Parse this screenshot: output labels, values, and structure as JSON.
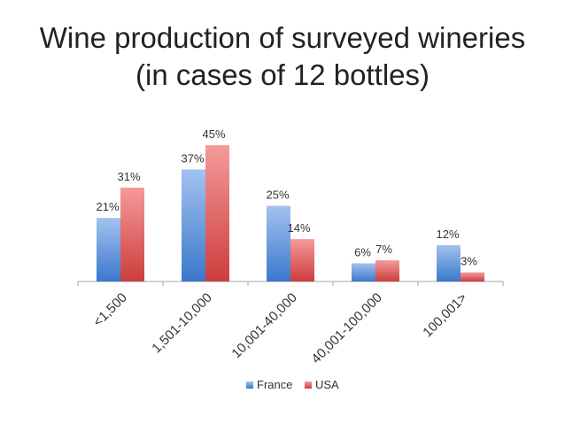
{
  "title": {
    "line1": "Wine production of surveyed wineries",
    "line2": "(in cases of 12 bottles)"
  },
  "colors": {
    "france_top": "#a3c2ef",
    "france_bottom": "#3a78cc",
    "usa_top": "#f59a9a",
    "usa_bottom": "#cc3d3d",
    "axis": "#a6a6a6",
    "text": "#333333"
  },
  "chart_data": {
    "type": "bar",
    "categories": [
      "<1,500",
      "1,501-10,000",
      "10,001-40,000",
      "40,001-100,000",
      "100,001>"
    ],
    "series": [
      {
        "name": "France",
        "values": [
          21,
          37,
          25,
          6,
          12
        ],
        "labels": [
          "21%",
          "37%",
          "25%",
          "6%",
          "12%"
        ]
      },
      {
        "name": "USA",
        "values": [
          31,
          45,
          14,
          7,
          3
        ],
        "labels": [
          "31%",
          "45%",
          "14%",
          "7%",
          "3%"
        ]
      }
    ],
    "unit": "%",
    "ylim": [
      0,
      45
    ],
    "grid": false,
    "legend_position": "bottom"
  }
}
